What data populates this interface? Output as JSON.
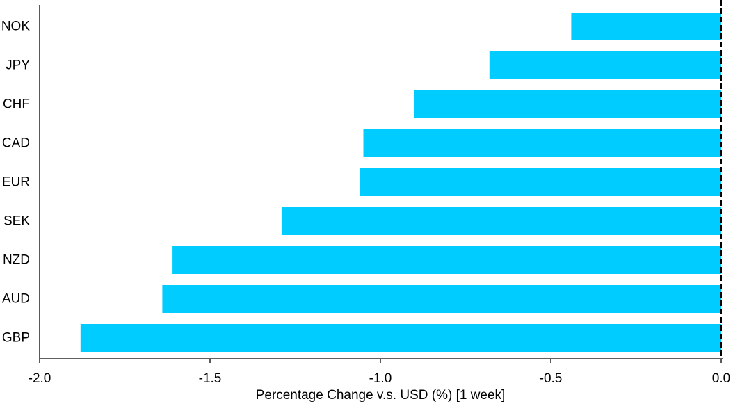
{
  "chart_data": {
    "type": "bar",
    "orientation": "horizontal",
    "categories": [
      "NOK",
      "JPY",
      "CHF",
      "CAD",
      "EUR",
      "SEK",
      "NZD",
      "AUD",
      "GBP"
    ],
    "values": [
      -0.44,
      -0.68,
      -0.9,
      -1.05,
      -1.06,
      -1.29,
      -1.61,
      -1.64,
      -1.88
    ],
    "xlabel": "Percentage Change v.s. USD (%) [1 week]",
    "ylabel": "",
    "xlim": [
      -2.0,
      0.0
    ],
    "xticks": [
      "-2.0",
      "-1.5",
      "-1.0",
      "-0.5",
      "0.0"
    ],
    "zero_line": "dashed",
    "grid": false,
    "legend": "none"
  },
  "colors": {
    "bar": "#00CCFF",
    "axis": "#000000",
    "background": "#FFFFFF"
  }
}
